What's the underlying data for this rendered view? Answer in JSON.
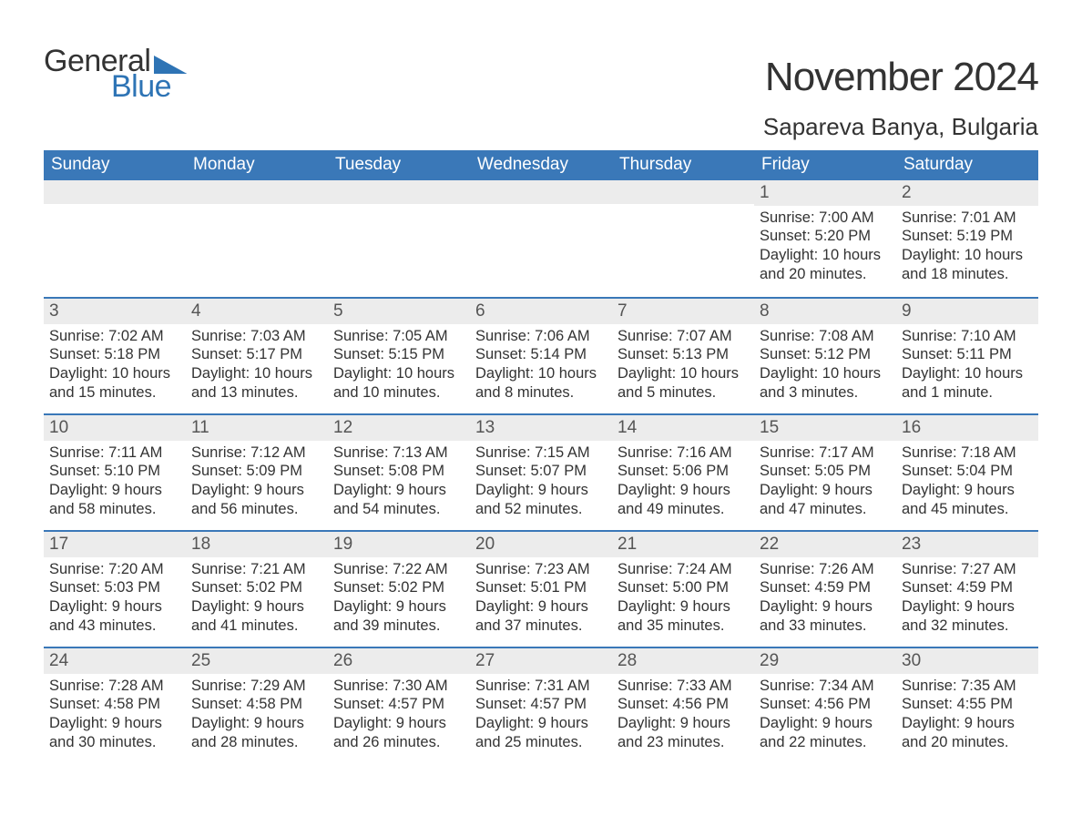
{
  "brand": {
    "word1": "General",
    "word2": "Blue"
  },
  "title": "November 2024",
  "location": "Sapareva Banya, Bulgaria",
  "colors": {
    "header_bg": "#3a78b8",
    "header_text": "#ffffff",
    "daynum_bg": "#ececec",
    "rule": "#3a78b8",
    "text": "#333333",
    "brand_blue": "#2e74b5"
  },
  "weekdays": [
    "Sunday",
    "Monday",
    "Tuesday",
    "Wednesday",
    "Thursday",
    "Friday",
    "Saturday"
  ],
  "weeks": [
    [
      null,
      null,
      null,
      null,
      null,
      {
        "n": "1",
        "sunrise": "Sunrise: 7:00 AM",
        "sunset": "Sunset: 5:20 PM",
        "daylight": "Daylight: 10 hours and 20 minutes."
      },
      {
        "n": "2",
        "sunrise": "Sunrise: 7:01 AM",
        "sunset": "Sunset: 5:19 PM",
        "daylight": "Daylight: 10 hours and 18 minutes."
      }
    ],
    [
      {
        "n": "3",
        "sunrise": "Sunrise: 7:02 AM",
        "sunset": "Sunset: 5:18 PM",
        "daylight": "Daylight: 10 hours and 15 minutes."
      },
      {
        "n": "4",
        "sunrise": "Sunrise: 7:03 AM",
        "sunset": "Sunset: 5:17 PM",
        "daylight": "Daylight: 10 hours and 13 minutes."
      },
      {
        "n": "5",
        "sunrise": "Sunrise: 7:05 AM",
        "sunset": "Sunset: 5:15 PM",
        "daylight": "Daylight: 10 hours and 10 minutes."
      },
      {
        "n": "6",
        "sunrise": "Sunrise: 7:06 AM",
        "sunset": "Sunset: 5:14 PM",
        "daylight": "Daylight: 10 hours and 8 minutes."
      },
      {
        "n": "7",
        "sunrise": "Sunrise: 7:07 AM",
        "sunset": "Sunset: 5:13 PM",
        "daylight": "Daylight: 10 hours and 5 minutes."
      },
      {
        "n": "8",
        "sunrise": "Sunrise: 7:08 AM",
        "sunset": "Sunset: 5:12 PM",
        "daylight": "Daylight: 10 hours and 3 minutes."
      },
      {
        "n": "9",
        "sunrise": "Sunrise: 7:10 AM",
        "sunset": "Sunset: 5:11 PM",
        "daylight": "Daylight: 10 hours and 1 minute."
      }
    ],
    [
      {
        "n": "10",
        "sunrise": "Sunrise: 7:11 AM",
        "sunset": "Sunset: 5:10 PM",
        "daylight": "Daylight: 9 hours and 58 minutes."
      },
      {
        "n": "11",
        "sunrise": "Sunrise: 7:12 AM",
        "sunset": "Sunset: 5:09 PM",
        "daylight": "Daylight: 9 hours and 56 minutes."
      },
      {
        "n": "12",
        "sunrise": "Sunrise: 7:13 AM",
        "sunset": "Sunset: 5:08 PM",
        "daylight": "Daylight: 9 hours and 54 minutes."
      },
      {
        "n": "13",
        "sunrise": "Sunrise: 7:15 AM",
        "sunset": "Sunset: 5:07 PM",
        "daylight": "Daylight: 9 hours and 52 minutes."
      },
      {
        "n": "14",
        "sunrise": "Sunrise: 7:16 AM",
        "sunset": "Sunset: 5:06 PM",
        "daylight": "Daylight: 9 hours and 49 minutes."
      },
      {
        "n": "15",
        "sunrise": "Sunrise: 7:17 AM",
        "sunset": "Sunset: 5:05 PM",
        "daylight": "Daylight: 9 hours and 47 minutes."
      },
      {
        "n": "16",
        "sunrise": "Sunrise: 7:18 AM",
        "sunset": "Sunset: 5:04 PM",
        "daylight": "Daylight: 9 hours and 45 minutes."
      }
    ],
    [
      {
        "n": "17",
        "sunrise": "Sunrise: 7:20 AM",
        "sunset": "Sunset: 5:03 PM",
        "daylight": "Daylight: 9 hours and 43 minutes."
      },
      {
        "n": "18",
        "sunrise": "Sunrise: 7:21 AM",
        "sunset": "Sunset: 5:02 PM",
        "daylight": "Daylight: 9 hours and 41 minutes."
      },
      {
        "n": "19",
        "sunrise": "Sunrise: 7:22 AM",
        "sunset": "Sunset: 5:02 PM",
        "daylight": "Daylight: 9 hours and 39 minutes."
      },
      {
        "n": "20",
        "sunrise": "Sunrise: 7:23 AM",
        "sunset": "Sunset: 5:01 PM",
        "daylight": "Daylight: 9 hours and 37 minutes."
      },
      {
        "n": "21",
        "sunrise": "Sunrise: 7:24 AM",
        "sunset": "Sunset: 5:00 PM",
        "daylight": "Daylight: 9 hours and 35 minutes."
      },
      {
        "n": "22",
        "sunrise": "Sunrise: 7:26 AM",
        "sunset": "Sunset: 4:59 PM",
        "daylight": "Daylight: 9 hours and 33 minutes."
      },
      {
        "n": "23",
        "sunrise": "Sunrise: 7:27 AM",
        "sunset": "Sunset: 4:59 PM",
        "daylight": "Daylight: 9 hours and 32 minutes."
      }
    ],
    [
      {
        "n": "24",
        "sunrise": "Sunrise: 7:28 AM",
        "sunset": "Sunset: 4:58 PM",
        "daylight": "Daylight: 9 hours and 30 minutes."
      },
      {
        "n": "25",
        "sunrise": "Sunrise: 7:29 AM",
        "sunset": "Sunset: 4:58 PM",
        "daylight": "Daylight: 9 hours and 28 minutes."
      },
      {
        "n": "26",
        "sunrise": "Sunrise: 7:30 AM",
        "sunset": "Sunset: 4:57 PM",
        "daylight": "Daylight: 9 hours and 26 minutes."
      },
      {
        "n": "27",
        "sunrise": "Sunrise: 7:31 AM",
        "sunset": "Sunset: 4:57 PM",
        "daylight": "Daylight: 9 hours and 25 minutes."
      },
      {
        "n": "28",
        "sunrise": "Sunrise: 7:33 AM",
        "sunset": "Sunset: 4:56 PM",
        "daylight": "Daylight: 9 hours and 23 minutes."
      },
      {
        "n": "29",
        "sunrise": "Sunrise: 7:34 AM",
        "sunset": "Sunset: 4:56 PM",
        "daylight": "Daylight: 9 hours and 22 minutes."
      },
      {
        "n": "30",
        "sunrise": "Sunrise: 7:35 AM",
        "sunset": "Sunset: 4:55 PM",
        "daylight": "Daylight: 9 hours and 20 minutes."
      }
    ]
  ]
}
